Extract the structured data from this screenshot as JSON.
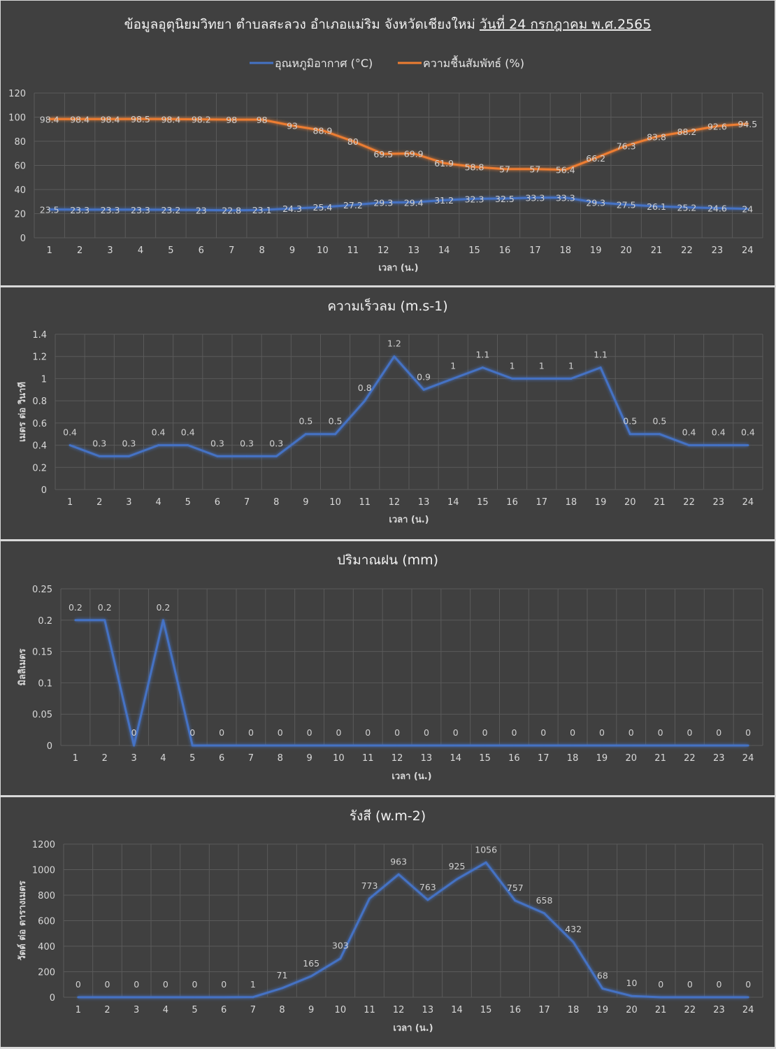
{
  "colors": {
    "temperature": "#4472c4",
    "humidity": "#ed7d31",
    "background": "#404040",
    "grid": "#5a5a5a",
    "text": "#d9d9d9"
  },
  "chart_data": [
    {
      "type": "line",
      "title": "ข้อมูลอุตุนิยมวิทยา  ตำบลสะลวง  อำเภอแม่ริม  จังหวัดเชียงใหม่  ",
      "title_date": "วันที่ 24 กรกฎาคม พ.ศ.2565",
      "xlabel": "เวลา (น.)",
      "ylabel": "",
      "ylim": [
        0,
        120
      ],
      "yticks": [
        0,
        20,
        40,
        60,
        80,
        100,
        120
      ],
      "legend_position": "top",
      "categories": [
        "1",
        "2",
        "3",
        "4",
        "5",
        "6",
        "7",
        "8",
        "9",
        "10",
        "11",
        "12",
        "13",
        "14",
        "15",
        "16",
        "17",
        "18",
        "19",
        "20",
        "21",
        "22",
        "23",
        "24"
      ],
      "series": [
        {
          "name": "อุณหภูมิอากาศ (°C)",
          "color": "#4472c4",
          "values": [
            23.5,
            23.3,
            23.3,
            23.3,
            23.2,
            23,
            22.8,
            23.1,
            24.3,
            25.4,
            27.2,
            29.3,
            29.4,
            31.2,
            32.3,
            32.5,
            33.3,
            33.3,
            29.3,
            27.5,
            26.1,
            25.2,
            24.6,
            24
          ]
        },
        {
          "name": "ความชื้นสัมพัทธ์ (%)",
          "color": "#ed7d31",
          "values": [
            98.4,
            98.4,
            98.4,
            98.5,
            98.4,
            98.2,
            98,
            98,
            93,
            88.9,
            80,
            69.5,
            69.9,
            61.9,
            58.8,
            57,
            57,
            56.4,
            66.2,
            76.3,
            83.8,
            88.2,
            92.6,
            94.5
          ]
        }
      ]
    },
    {
      "type": "line",
      "title": "ความเร็วลม (m.s-1)",
      "xlabel": "เวลา (น.)",
      "ylabel": "เมตร ต่อ วินาที",
      "ylim": [
        0,
        1.4
      ],
      "yticks": [
        0,
        0.2,
        0.4,
        0.6,
        0.8,
        1,
        1.2,
        1.4
      ],
      "categories": [
        "1",
        "2",
        "3",
        "4",
        "5",
        "6",
        "7",
        "8",
        "9",
        "10",
        "11",
        "12",
        "13",
        "14",
        "15",
        "16",
        "17",
        "18",
        "19",
        "20",
        "21",
        "22",
        "23",
        "24"
      ],
      "series": [
        {
          "color": "#4472c4",
          "values": [
            0.4,
            0.3,
            0.3,
            0.4,
            0.4,
            0.3,
            0.3,
            0.3,
            0.5,
            0.5,
            0.8,
            1.2,
            0.9,
            1,
            1.1,
            1,
            1,
            1,
            1.1,
            0.5,
            0.5,
            0.4,
            0.4,
            0.4
          ]
        }
      ]
    },
    {
      "type": "line",
      "title": "ปริมาณฝน (mm)",
      "xlabel": "เวลา (น.)",
      "ylabel": "มิลลิเมตร",
      "ylim": [
        0,
        0.25
      ],
      "yticks": [
        0,
        0.05,
        0.1,
        0.15,
        0.2,
        0.25
      ],
      "categories": [
        "1",
        "2",
        "3",
        "4",
        "5",
        "6",
        "7",
        "8",
        "9",
        "10",
        "11",
        "12",
        "13",
        "14",
        "15",
        "16",
        "17",
        "18",
        "19",
        "20",
        "21",
        "22",
        "23",
        "24"
      ],
      "series": [
        {
          "color": "#4472c4",
          "values": [
            0.2,
            0.2,
            0,
            0.2,
            0,
            0,
            0,
            0,
            0,
            0,
            0,
            0,
            0,
            0,
            0,
            0,
            0,
            0,
            0,
            0,
            0,
            0,
            0,
            0
          ]
        }
      ]
    },
    {
      "type": "line",
      "title": "รังสี (w.m-2)",
      "xlabel": "เวลา (น.)",
      "ylabel": "วัตต์ ต่อ ตารางเมตร",
      "ylim": [
        0,
        1200
      ],
      "yticks": [
        0,
        200,
        400,
        600,
        800,
        1000,
        1200
      ],
      "categories": [
        "1",
        "2",
        "3",
        "4",
        "5",
        "6",
        "7",
        "8",
        "9",
        "10",
        "11",
        "12",
        "13",
        "14",
        "15",
        "16",
        "17",
        "18",
        "19",
        "20",
        "21",
        "22",
        "23",
        "24"
      ],
      "series": [
        {
          "color": "#4472c4",
          "values": [
            0,
            0,
            0,
            0,
            0,
            0,
            1,
            71,
            165,
            303,
            773,
            963,
            763,
            925,
            1056,
            757,
            658,
            432,
            68,
            10,
            0,
            0,
            0,
            0
          ]
        }
      ]
    }
  ]
}
